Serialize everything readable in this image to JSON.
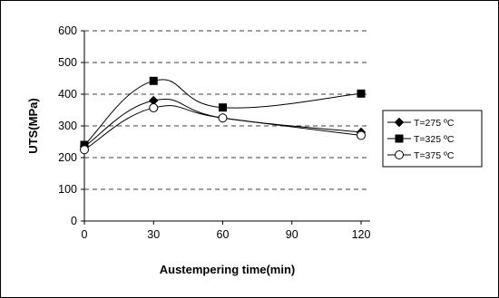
{
  "chart_data": {
    "type": "line",
    "xlabel": "Austempering time(min)",
    "ylabel": "UTS(MPa)",
    "xlim": [
      0,
      120
    ],
    "ylim": [
      0,
      600
    ],
    "x_ticks": [
      0,
      30,
      60,
      90,
      120
    ],
    "y_ticks": [
      0,
      100,
      200,
      300,
      400,
      500,
      600
    ],
    "grid": "horizontal dashed",
    "legend_position": "right",
    "x": [
      0,
      30,
      60,
      120
    ],
    "series": [
      {
        "name": "T=275 ºC",
        "marker": "diamond",
        "values": [
          235,
          380,
          325,
          280
        ]
      },
      {
        "name": "T=325 ºC",
        "marker": "square",
        "values": [
          240,
          442,
          358,
          402
        ]
      },
      {
        "name": "T=375 ºC",
        "marker": "circle-open",
        "values": [
          225,
          357,
          325,
          270
        ]
      }
    ]
  }
}
